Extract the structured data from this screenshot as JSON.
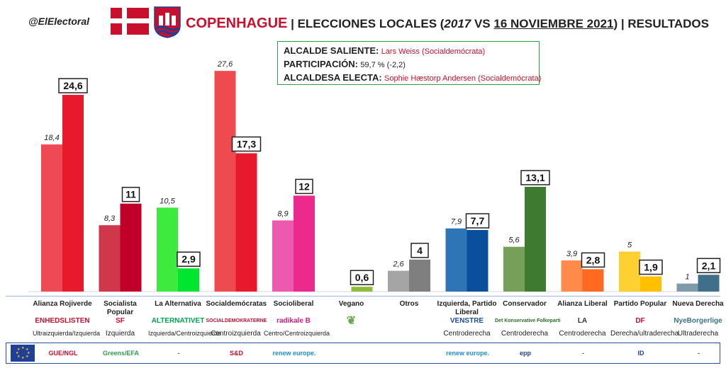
{
  "header": {
    "handle": "@ElElectoral",
    "city": "COPENHAGUE",
    "title_pre": "| ELECCIONES LOCALES (",
    "title_year": "2017",
    "title_vs": " VS ",
    "title_date": "16 NOVIEMBRE 2021",
    "title_post": ") | RESULTADOS"
  },
  "info": {
    "outgoing_label": "ALCALDE SALIENTE:",
    "outgoing_value": "Lars Weiss (Socialdemócrata)",
    "turnout_label": "PARTICIPACIÓN:",
    "turnout_value": "59,7 % (-2,2)",
    "elected_label": "ALCALDESA ELECTA:",
    "elected_value": "Sophie Hæstorp Andersen (Socialdemócrata)"
  },
  "chart_data": {
    "type": "bar",
    "categories": [
      "Alianza Rojiverde",
      "Socialista Popular",
      "La Alternativa",
      "Socialdemócratas",
      "Socioliberal",
      "Vegano",
      "Otros",
      "Izquierda, Partido Liberal",
      "Conservador",
      "Alianza Liberal",
      "Partido Popular",
      "Nueva Derecha"
    ],
    "series": [
      {
        "values": [
          18.4,
          8.3,
          10.5,
          27.6,
          8.9,
          null,
          2.6,
          7.9,
          5.6,
          3.9,
          5,
          1
        ]
      },
      {
        "values": [
          24.6,
          11,
          2.9,
          17.3,
          12,
          0.6,
          4,
          7.7,
          13.1,
          2.8,
          1.9,
          2.1
        ]
      }
    ],
    "labels_2017": [
      "18,4",
      "8,3",
      "10,5",
      "27,6",
      "8,9",
      "",
      "2,6",
      "7,9",
      "5,6",
      "3,9",
      "5",
      "1"
    ],
    "labels_2021": [
      "24,6",
      "11",
      "2,9",
      "17,3",
      "12",
      "0,6",
      "4",
      "7,7",
      "13,1",
      "2,8",
      "1,9",
      "2,1"
    ],
    "colors_2017": [
      "#ee4a55",
      "#d0374b",
      "#3fea3f",
      "#ef4a4f",
      "#ee59b0",
      "#a6c94a",
      "#a5a5a5",
      "#2e75b6",
      "#76a05a",
      "#ff8a4a",
      "#ffd032",
      "#7f9aa8"
    ],
    "colors_2021": [
      "#e8192c",
      "#c00028",
      "#00e62e",
      "#e8192c",
      "#ec2a8e",
      "#8fbd3a",
      "#7f7f7f",
      "#0a4f9b",
      "#3e7b30",
      "#ff6a20",
      "#ffc000",
      "#3f6f8a"
    ],
    "ylim": [
      0,
      30
    ],
    "grid": false,
    "legend": "none"
  },
  "logos": [
    "ENHEDSLISTEN",
    "SF",
    "ALTERNATIVET",
    "SOCIALDEMOKRATERNE",
    "radikale B",
    "",
    "",
    "VENSTRE",
    "Det Konservative Folkeparti",
    "LA",
    "DF",
    "NyeBorgerlige"
  ],
  "ideologies": [
    "Ultraizquierda/Izquierda",
    "Izquierda",
    "Izquierda/Centroizquierda",
    "Centroizquierda",
    "Centro/Centroizquierda",
    "",
    "",
    "Centroderecha",
    "Centroderecha",
    "Centroderecha",
    "Derecha/ultraderecha",
    "Ultraderecha"
  ],
  "eu_groups": [
    "GUE/NGL",
    "Greens/EFA",
    "-",
    "S&D",
    "renew europe.",
    "",
    "",
    "renew europe.",
    "epp",
    "-",
    "ID",
    "-"
  ],
  "colors": {
    "accent_red": "#c8102e",
    "box_border": "#2e9e4a",
    "eu_blue": "#1f3f98"
  }
}
